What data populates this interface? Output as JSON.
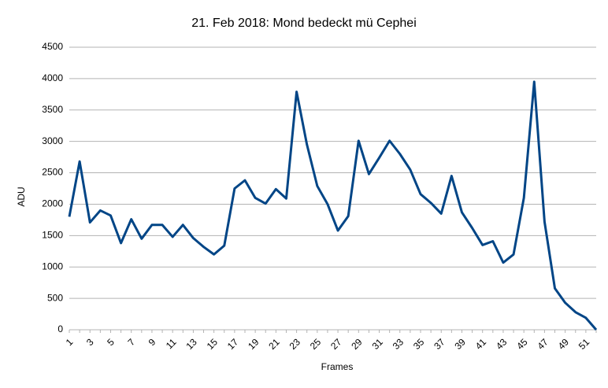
{
  "chart_data": {
    "type": "line",
    "title": "21. Feb 2018: Mond bedeckt mü Cephei",
    "x_label": "Frames",
    "y_label": "ADU",
    "categories": [
      "1",
      null,
      "3",
      null,
      "5",
      null,
      "7",
      null,
      "9",
      null,
      "11",
      null,
      "13",
      null,
      "15",
      null,
      "17",
      null,
      "19",
      null,
      "21",
      null,
      "23",
      null,
      "25",
      null,
      "27",
      null,
      "29",
      null,
      "31",
      null,
      "33",
      null,
      "35",
      null,
      "37",
      null,
      "39",
      null,
      "41",
      null,
      "43",
      null,
      "45",
      null,
      "47",
      null,
      "49",
      null,
      "51",
      null
    ],
    "series": [
      {
        "name": "ADU",
        "color": "#004586",
        "values": [
          1800,
          2680,
          1710,
          1900,
          1820,
          1380,
          1760,
          1450,
          1670,
          1670,
          1480,
          1670,
          1460,
          1320,
          1200,
          1340,
          2250,
          2380,
          2100,
          2010,
          2240,
          2090,
          3790,
          2950,
          2290,
          2000,
          1580,
          1810,
          3010,
          2480,
          2740,
          3010,
          2800,
          2550,
          2160,
          2020,
          1850,
          2450,
          1870,
          1620,
          1350,
          1410,
          1070,
          1200,
          2100,
          3950,
          1720,
          660,
          430,
          280,
          190,
          0
        ]
      }
    ],
    "ylim": [
      0,
      4500
    ],
    "yticks": [
      0,
      500,
      1000,
      1500,
      2000,
      2500,
      3000,
      3500,
      4000,
      4500
    ],
    "grid": true
  }
}
